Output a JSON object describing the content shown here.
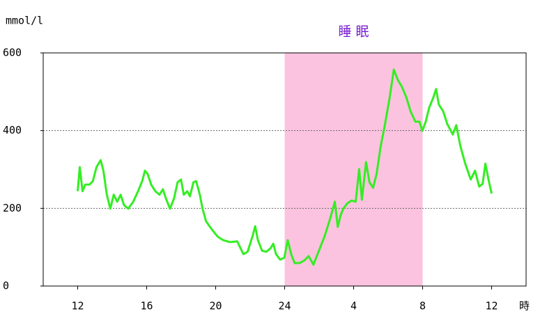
{
  "chart_data": {
    "type": "line",
    "y_label": "mmol/l",
    "x_label": "時",
    "shaded_region": {
      "xlim": [
        24,
        32
      ],
      "label": "睡 眠",
      "color": "#fbc3df",
      "label_color": "#7a1fd0"
    },
    "xlim": [
      10,
      38
    ],
    "ylim": [
      0,
      600
    ],
    "xticks": [
      12,
      16,
      20,
      24,
      {
        "value": 28,
        "label": "4"
      },
      {
        "value": 32,
        "label": "8"
      },
      {
        "value": 36,
        "label": "12"
      }
    ],
    "yticks": [
      0,
      200,
      400,
      600
    ],
    "grid_lines": [
      200,
      400
    ],
    "series": [
      {
        "color": "#33ee22",
        "x": [
          12.0,
          12.12,
          12.28,
          12.44,
          12.68,
          12.88,
          13.09,
          13.33,
          13.49,
          13.69,
          13.89,
          14.09,
          14.29,
          14.49,
          14.69,
          14.93,
          15.22,
          15.5,
          15.74,
          15.9,
          16.06,
          16.26,
          16.5,
          16.74,
          16.94,
          17.11,
          17.35,
          17.59,
          17.79,
          17.99,
          18.15,
          18.35,
          18.51,
          18.71,
          18.87,
          19.08,
          19.24,
          19.44,
          19.64,
          19.88,
          20.12,
          20.44,
          20.84,
          21.25,
          21.41,
          21.61,
          21.85,
          22.13,
          22.29,
          22.45,
          22.69,
          22.93,
          23.18,
          23.34,
          23.5,
          23.74,
          23.98,
          24.18,
          24.38,
          24.58,
          24.86,
          25.15,
          25.39,
          25.67,
          25.99,
          26.31,
          26.63,
          26.91,
          27.08,
          27.24,
          27.4,
          27.64,
          27.88,
          28.12,
          28.32,
          28.48,
          28.72,
          28.92,
          29.13,
          29.33,
          29.57,
          29.81,
          30.09,
          30.33,
          30.57,
          30.81,
          31.06,
          31.3,
          31.58,
          31.82,
          31.98,
          32.18,
          32.38,
          32.62,
          32.78,
          32.94,
          33.19,
          33.43,
          33.75,
          33.95,
          34.19,
          34.47,
          34.79,
          35.04,
          35.28,
          35.48,
          35.64,
          35.84,
          36.0
        ],
        "values": [
          244,
          306,
          244,
          261,
          261,
          270,
          306,
          324,
          297,
          235,
          199,
          235,
          217,
          235,
          208,
          199,
          217,
          244,
          270,
          297,
          288,
          261,
          244,
          235,
          249,
          226,
          199,
          226,
          267,
          274,
          235,
          244,
          231,
          267,
          270,
          235,
          199,
          167,
          154,
          140,
          127,
          118,
          113,
          115,
          100,
          82,
          88,
          127,
          154,
          118,
          91,
          88,
          97,
          109,
          82,
          68,
          73,
          118,
          82,
          59,
          59,
          66,
          77,
          55,
          91,
          127,
          172,
          217,
          152,
          181,
          199,
          213,
          220,
          217,
          301,
          222,
          319,
          267,
          253,
          288,
          360,
          414,
          485,
          557,
          530,
          512,
          485,
          450,
          423,
          423,
          399,
          423,
          459,
          485,
          507,
          467,
          450,
          417,
          390,
          414,
          360,
          315,
          274,
          297,
          256,
          263,
          315,
          270,
          238
        ]
      }
    ]
  }
}
